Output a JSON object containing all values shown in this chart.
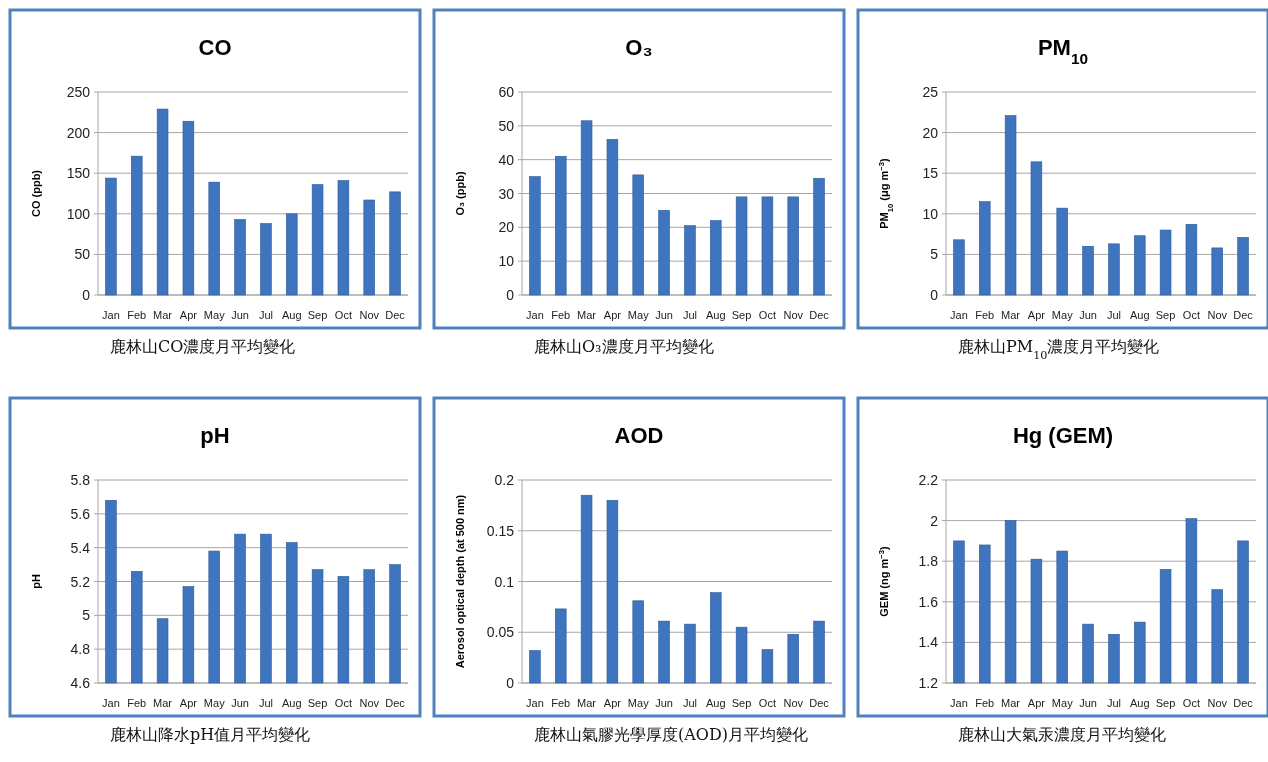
{
  "chart_data": [
    {
      "type": "bar",
      "title": "CO",
      "ylabel": "CO (ppb)",
      "categories": [
        "Jan",
        "Feb",
        "Mar",
        "Apr",
        "May",
        "Jun",
        "Jul",
        "Aug",
        "Sep",
        "Oct",
        "Nov",
        "Dec"
      ],
      "values": [
        144,
        171,
        229,
        214,
        139,
        93,
        88,
        100,
        136,
        141,
        117,
        127
      ],
      "color": "#3f74bf",
      "ylim": [
        0,
        250
      ],
      "yticks": [
        0,
        50,
        100,
        150,
        200,
        250
      ],
      "grid": "y",
      "annotations": [
        "鹿林山CO濃度月平均變化"
      ]
    },
    {
      "type": "bar",
      "title": "O₃",
      "ylabel": "O₃ (ppb)",
      "categories": [
        "Jan",
        "Feb",
        "Mar",
        "Apr",
        "May",
        "Jun",
        "Jul",
        "Aug",
        "Sep",
        "Oct",
        "Nov",
        "Dec"
      ],
      "values": [
        35,
        41,
        51.5,
        46,
        35.5,
        25,
        20.5,
        22,
        29,
        29,
        29,
        34.5
      ],
      "color": "#3f74bf",
      "ylim": [
        0,
        60
      ],
      "yticks": [
        0,
        10,
        20,
        30,
        40,
        50,
        60
      ],
      "grid": "y",
      "annotations": [
        "鹿林山O₃濃度月平均變化"
      ]
    },
    {
      "type": "bar",
      "title": "PM$_{10}$",
      "ylabel": "PM$_{10}$ (μg m$^{−3}$)",
      "categories": [
        "Jan",
        "Feb",
        "Mar",
        "Apr",
        "May",
        "Jun",
        "Jul",
        "Aug",
        "Sep",
        "Oct",
        "Nov",
        "Dec"
      ],
      "values": [
        6.8,
        11.5,
        22.1,
        16.4,
        10.7,
        6,
        6.3,
        7.3,
        8,
        8.7,
        5.8,
        7.1
      ],
      "color": "#3f74bf",
      "ylim": [
        0,
        25
      ],
      "yticks": [
        0,
        5,
        10,
        15,
        20,
        25
      ],
      "grid": "y",
      "annotations": [
        "鹿林山PM$_{10}$濃度月平均變化"
      ]
    },
    {
      "type": "bar",
      "title": "pH",
      "ylabel": "pH",
      "categories": [
        "Jan",
        "Feb",
        "Mar",
        "Apr",
        "May",
        "Jun",
        "Jul",
        "Aug",
        "Sep",
        "Oct",
        "Nov",
        "Dec"
      ],
      "values": [
        5.68,
        5.26,
        4.98,
        5.17,
        5.38,
        5.48,
        5.48,
        5.43,
        5.27,
        5.23,
        5.27,
        5.3
      ],
      "color": "#3f74bf",
      "ylim": [
        4.6,
        5.8
      ],
      "yticks": [
        4.6,
        4.8,
        5,
        5.2,
        5.4,
        5.6,
        5.8
      ],
      "grid": "y",
      "annotations": [
        "鹿林山降水pH值月平均變化"
      ]
    },
    {
      "type": "bar",
      "title": "AOD",
      "ylabel": "Aerosol optical depth (at 500 nm)",
      "categories": [
        "Jan",
        "Feb",
        "Mar",
        "Apr",
        "May",
        "Jun",
        "Jul",
        "Aug",
        "Sep",
        "Oct",
        "Nov",
        "Dec"
      ],
      "values": [
        0.032,
        0.073,
        0.185,
        0.18,
        0.081,
        0.061,
        0.058,
        0.089,
        0.055,
        0.033,
        0.048,
        0.061
      ],
      "color": "#3f74bf",
      "ylim": [
        0,
        0.2
      ],
      "yticks": [
        0,
        0.05,
        0.1,
        0.15,
        0.2
      ],
      "grid": "y",
      "annotations": [
        "鹿林山氣膠光學厚度(AOD)月平均變化"
      ]
    },
    {
      "type": "bar",
      "title": "Hg (GEM)",
      "ylabel": "GEM (ng m$^{−3}$)",
      "categories": [
        "Jan",
        "Feb",
        "Mar",
        "Apr",
        "May",
        "Jun",
        "Jul",
        "Aug",
        "Sep",
        "Oct",
        "Nov",
        "Dec"
      ],
      "values": [
        1.9,
        1.88,
        2,
        1.81,
        1.85,
        1.49,
        1.44,
        1.5,
        1.76,
        2.01,
        1.66,
        1.9
      ],
      "color": "#3f74bf",
      "ylim": [
        1.2,
        2.2
      ],
      "yticks": [
        1.2,
        1.4,
        1.6,
        1.8,
        2,
        2.2
      ],
      "grid": "y",
      "annotations": [
        "鹿林山大氣汞濃度月平均變化"
      ]
    }
  ]
}
